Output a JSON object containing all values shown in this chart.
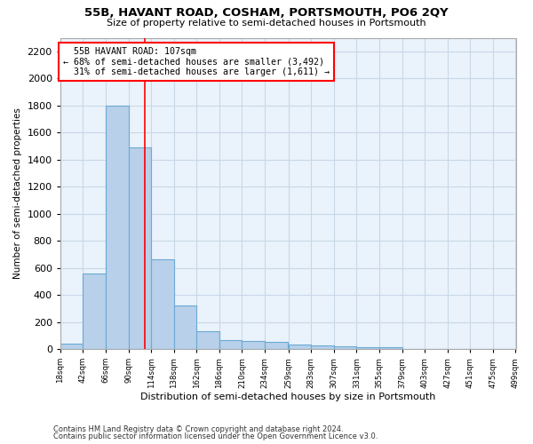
{
  "title": "55B, HAVANT ROAD, COSHAM, PORTSMOUTH, PO6 2QY",
  "subtitle": "Size of property relative to semi-detached houses in Portsmouth",
  "xlabel": "Distribution of semi-detached houses by size in Portsmouth",
  "ylabel": "Number of semi-detached properties",
  "footnote1": "Contains HM Land Registry data © Crown copyright and database right 2024.",
  "footnote2": "Contains public sector information licensed under the Open Government Licence v3.0.",
  "property_size": 107,
  "property_label": "55B HAVANT ROAD: 107sqm",
  "pct_smaller": 68,
  "count_smaller": 3492,
  "pct_larger": 31,
  "count_larger": 1611,
  "bin_edges": [
    18,
    42,
    66,
    90,
    114,
    138,
    162,
    186,
    210,
    234,
    259,
    283,
    307,
    331,
    355,
    379,
    403,
    427,
    451,
    475,
    499
  ],
  "bar_values": [
    40,
    560,
    1800,
    1490,
    660,
    325,
    130,
    65,
    60,
    50,
    35,
    25,
    20,
    15,
    12,
    0,
    0,
    0,
    0,
    0
  ],
  "bar_color": "#B8D0EA",
  "bar_edge_color": "#6AAAD4",
  "vline_x": 107,
  "vline_color": "red",
  "annotation_box_color": "red",
  "grid_color": "#C8D8E8",
  "background_color": "#EAF2FB",
  "ylim": [
    0,
    2300
  ],
  "yticks": [
    0,
    200,
    400,
    600,
    800,
    1000,
    1200,
    1400,
    1600,
    1800,
    2000,
    2200
  ]
}
